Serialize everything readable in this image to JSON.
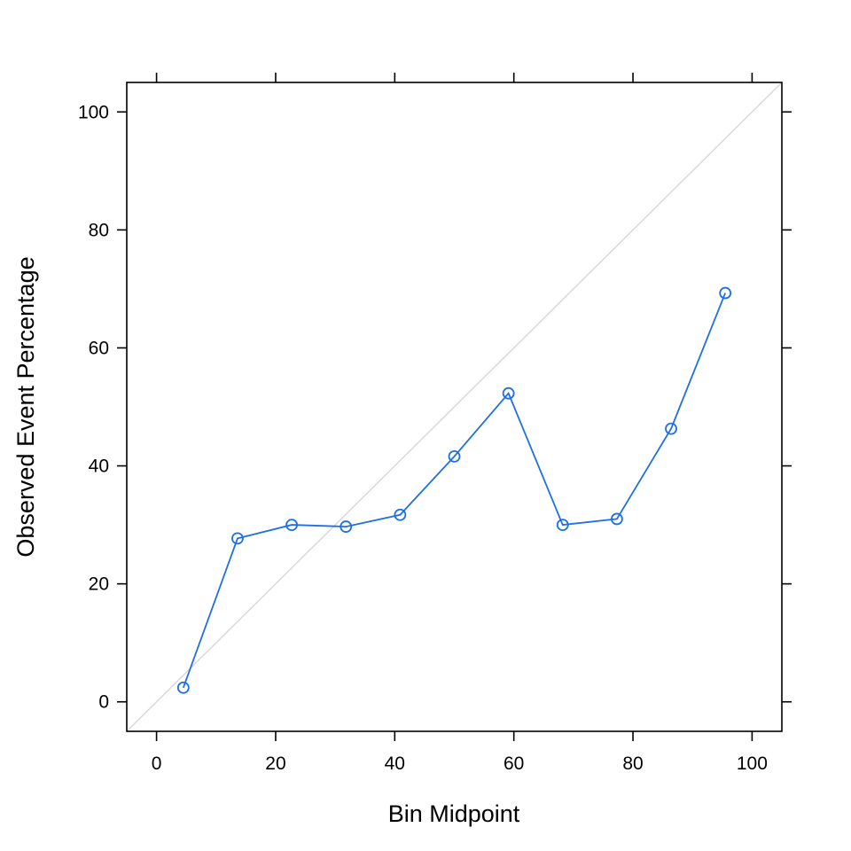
{
  "chart_data": {
    "type": "line",
    "title": "",
    "xlabel": "Bin Midpoint",
    "ylabel": "Observed Event Percentage",
    "xlim": [
      -5,
      105
    ],
    "ylim": [
      -5,
      105
    ],
    "x_ticks": [
      0,
      20,
      40,
      60,
      80,
      100
    ],
    "y_ticks": [
      0,
      20,
      40,
      60,
      80,
      100
    ],
    "x_tick_labels": [
      "0",
      "20",
      "40",
      "60",
      "80",
      "100"
    ],
    "y_tick_labels": [
      "0",
      "20",
      "40",
      "60",
      "80",
      "100"
    ],
    "grid": false,
    "legend": "none",
    "reference_line": {
      "type": "diagonal",
      "from": [
        -5,
        -5
      ],
      "to": [
        105,
        105
      ],
      "color": "#d9d9d9"
    },
    "series": [
      {
        "color": "#1f6fe5",
        "marker": "open-circle",
        "x": [
          4.5,
          13.6,
          22.7,
          31.8,
          40.9,
          50.0,
          59.1,
          68.2,
          77.3,
          86.4,
          95.5
        ],
        "y": [
          2.4,
          27.7,
          30.0,
          29.7,
          31.7,
          41.6,
          52.3,
          30.0,
          31.0,
          46.3,
          69.3
        ]
      }
    ]
  }
}
